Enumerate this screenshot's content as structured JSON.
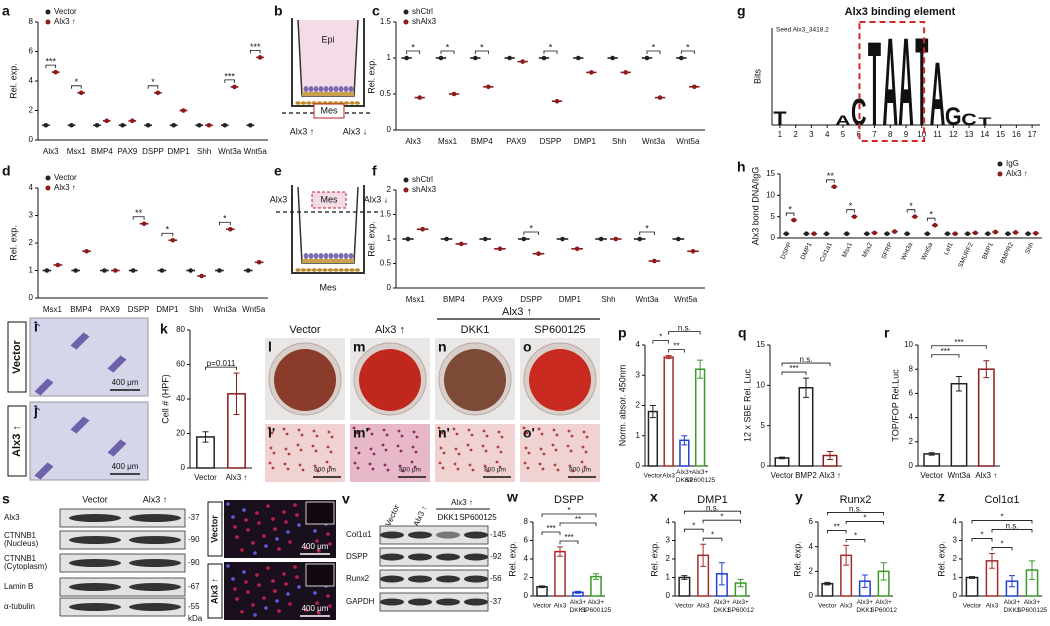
{
  "chart_data": [
    {
      "type": "dot",
      "ylabel": "Rel. exp.",
      "categories": [
        "Alx3",
        "Msx1",
        "BMP4",
        "PAX9",
        "DSPP",
        "DMP1",
        "Shh",
        "Wnt3a",
        "Wnt5a"
      ],
      "series": [
        {
          "name": "Vector",
          "color": "#222222",
          "values": [
            1,
            1,
            1,
            1,
            1,
            1,
            1,
            1,
            1
          ]
        },
        {
          "name": "Alx3 ↑",
          "color": "#8b1a1a",
          "values": [
            4.6,
            3.2,
            1.3,
            1.3,
            3.2,
            2.0,
            1.0,
            3.6,
            5.6
          ]
        }
      ],
      "significance": [
        "***",
        "*",
        null,
        null,
        "*",
        null,
        null,
        "***",
        "***"
      ],
      "ylim": [
        0,
        8
      ],
      "yticks": [
        0,
        2,
        4,
        6,
        8
      ],
      "legend": "upper left"
    },
    {
      "type": "dot",
      "ylabel": "Rel. exp.",
      "categories": [
        "Alx3",
        "Msx1",
        "BMP4",
        "PAX9",
        "DSPP",
        "DMP1",
        "Shh",
        "Wnt3a",
        "Wnt5a"
      ],
      "series": [
        {
          "name": "shCtrl",
          "color": "#222222",
          "values": [
            1,
            1,
            1,
            1,
            1,
            1,
            1,
            1,
            1
          ]
        },
        {
          "name": "shAlx3",
          "color": "#8b1a1a",
          "values": [
            0.45,
            0.5,
            0.6,
            0.95,
            0.4,
            0.8,
            0.8,
            0.45,
            0.6
          ]
        }
      ],
      "significance": [
        "*",
        "*",
        "*",
        null,
        "*",
        null,
        null,
        "*",
        "*"
      ],
      "ylim": [
        0,
        1.5
      ],
      "yticks": [
        0,
        0.5,
        1,
        1.5
      ],
      "legend": "upper left"
    },
    {
      "type": "dot",
      "ylabel": "Rel. exp.",
      "categories": [
        "Msx1",
        "BMP4",
        "PAX9",
        "DSPP",
        "DMP1",
        "Shh",
        "Wnt3a",
        "Wnt5a"
      ],
      "series": [
        {
          "name": "Vector",
          "color": "#222222",
          "values": [
            1,
            1,
            1,
            1,
            1,
            1,
            1,
            1
          ]
        },
        {
          "name": "Alx3 ↑",
          "color": "#8b1a1a",
          "values": [
            1.2,
            1.7,
            1.0,
            2.7,
            2.1,
            0.8,
            2.5,
            1.3
          ]
        }
      ],
      "significance": [
        null,
        null,
        null,
        "**",
        "*",
        null,
        "*",
        null
      ],
      "ylim": [
        0,
        4
      ],
      "yticks": [
        0,
        1,
        2,
        3,
        4
      ],
      "legend": "upper left"
    },
    {
      "type": "dot",
      "ylabel": "Rel. exp.",
      "categories": [
        "Msx1",
        "BMP4",
        "PAX9",
        "DSPP",
        "DMP1",
        "Shh",
        "Wnt3a",
        "Wnt5a"
      ],
      "series": [
        {
          "name": "shCtrl",
          "color": "#222222",
          "values": [
            1,
            1,
            1,
            1,
            1,
            1,
            1,
            1
          ]
        },
        {
          "name": "shAlx3",
          "color": "#8b1a1a",
          "values": [
            1.2,
            0.9,
            0.8,
            0.7,
            0.8,
            1.0,
            0.55,
            0.75
          ]
        }
      ],
      "significance": [
        null,
        null,
        null,
        "*",
        null,
        null,
        "*",
        null
      ],
      "ylim": [
        0,
        2
      ],
      "yticks": [
        0,
        0.5,
        1,
        1.5,
        2
      ],
      "legend": "upper left"
    },
    {
      "type": "dot",
      "ylabel": "Alx3 bond DNA/IgG",
      "categories": [
        "DSPP",
        "DMP1",
        "Col1a1",
        "Msx1",
        "Msx2",
        "SFRP",
        "Wnt3a",
        "Wnt5a",
        "Lef1",
        "SMURF2",
        "BMP1",
        "BMPR2",
        "Shh"
      ],
      "series": [
        {
          "name": "IgG",
          "color": "#222222",
          "values": [
            1,
            1,
            1,
            1,
            1,
            1,
            1,
            1,
            1,
            1,
            1,
            1,
            1
          ]
        },
        {
          "name": "Alx3 ↑",
          "color": "#8b1a1a",
          "values": [
            4.2,
            1.0,
            12,
            5,
            1.2,
            1.5,
            5,
            3,
            1.0,
            1.2,
            1.4,
            1.3,
            1.1
          ]
        }
      ],
      "significance": [
        "*",
        null,
        "**",
        "*",
        null,
        null,
        "*",
        "*",
        null,
        null,
        null,
        null,
        null
      ],
      "ylim": [
        0,
        15
      ],
      "yticks": [
        0,
        5,
        10,
        15
      ],
      "legend": "upper right"
    },
    {
      "type": "bar",
      "ylabel": "Cell # (HPF)",
      "categories": [
        "Vector",
        "Alx3 ↑"
      ],
      "values": [
        18,
        43
      ],
      "errors": [
        3,
        12
      ],
      "colors": [
        "#222222",
        "#8b1a1a"
      ],
      "comparisons": [
        {
          "pair": [
            0,
            1
          ],
          "label": "p=0.011"
        }
      ],
      "ylim": [
        0,
        80
      ],
      "yticks": [
        0,
        20,
        40,
        60,
        80
      ]
    },
    {
      "type": "bar",
      "ylabel": "Norm. absor. 450nm",
      "categories": [
        "Vector",
        "Alx3",
        "Alx3+ DKK1",
        "Alx3+ SP600125"
      ],
      "values": [
        1.8,
        3.6,
        0.85,
        3.2
      ],
      "errors": [
        0.2,
        0.05,
        0.15,
        0.3
      ],
      "colors": [
        "#222222",
        "#a52a2a",
        "#1f3fd0",
        "#3a9a2a"
      ],
      "comparisons": [
        {
          "pair": [
            1,
            2
          ],
          "label": "**"
        },
        {
          "pair": [
            0,
            1
          ],
          "label": "*"
        },
        {
          "pair": [
            1,
            3
          ],
          "label": "n.s."
        }
      ],
      "ylim": [
        0,
        4
      ],
      "yticks": [
        0,
        1,
        2,
        3,
        4
      ]
    },
    {
      "type": "bar",
      "ylabel": "12 x SBE Rel. Luc",
      "categories": [
        "Vector",
        "BMP2",
        "Alx3 ↑"
      ],
      "values": [
        1,
        9.7,
        1.3
      ],
      "errors": [
        0.1,
        1.2,
        0.5
      ],
      "colors": [
        "#222222",
        "#222222",
        "#8b1a1a"
      ],
      "comparisons": [
        {
          "pair": [
            0,
            1
          ],
          "label": "***"
        },
        {
          "pair": [
            0,
            2
          ],
          "label": "n.s."
        }
      ],
      "ylim": [
        0,
        15
      ],
      "yticks": [
        0,
        5,
        10,
        15
      ]
    },
    {
      "type": "bar",
      "ylabel": "TOP/FOP Rel.Luc",
      "categories": [
        "Vector",
        "Wnt3a",
        "Alx3 ↑"
      ],
      "values": [
        1,
        6.8,
        8
      ],
      "errors": [
        0.1,
        0.6,
        0.7
      ],
      "colors": [
        "#222222",
        "#222222",
        "#8b1a1a"
      ],
      "comparisons": [
        {
          "pair": [
            0,
            1
          ],
          "label": "***"
        },
        {
          "pair": [
            0,
            2
          ],
          "label": "***"
        }
      ],
      "ylim": [
        0,
        10
      ],
      "yticks": [
        0,
        2,
        4,
        6,
        8,
        10
      ]
    },
    {
      "type": "bar",
      "title": "DSPP",
      "ylabel": "Rel. exp.",
      "categories": [
        "Vector",
        "Alx3",
        "Alx3+ DKK1",
        "Alx3+ SP600125"
      ],
      "values": [
        1,
        4.8,
        0.4,
        2.1
      ],
      "errors": [
        0.1,
        0.5,
        0.1,
        0.3
      ],
      "colors": [
        "#222222",
        "#a52a2a",
        "#1f3fd0",
        "#3a9a2a"
      ],
      "comparisons": [
        {
          "pair": [
            1,
            2
          ],
          "label": "***"
        },
        {
          "pair": [
            0,
            1
          ],
          "label": "***"
        },
        {
          "pair": [
            1,
            3
          ],
          "label": "**"
        },
        {
          "pair": [
            0,
            3
          ],
          "label": "*"
        }
      ],
      "ylim": [
        0,
        8
      ],
      "yticks": [
        0,
        2,
        4,
        6,
        8
      ]
    },
    {
      "type": "bar",
      "title": "DMP1",
      "ylabel": "Rel. exp.",
      "categories": [
        "Vector",
        "Alx3",
        "Alx3+ DKK1",
        "Alx3+ SP60012"
      ],
      "values": [
        1,
        2.2,
        1.2,
        0.7
      ],
      "errors": [
        0.1,
        0.6,
        0.6,
        0.2
      ],
      "colors": [
        "#222222",
        "#a52a2a",
        "#1f3fd0",
        "#3a9a2a"
      ],
      "comparisons": [
        {
          "pair": [
            1,
            2
          ],
          "label": "*"
        },
        {
          "pair": [
            0,
            1
          ],
          "label": "*"
        },
        {
          "pair": [
            1,
            3
          ],
          "label": "*"
        },
        {
          "pair": [
            0,
            3
          ],
          "label": "n.s."
        }
      ],
      "ylim": [
        0,
        4
      ],
      "yticks": [
        0,
        1,
        2,
        3,
        4
      ]
    },
    {
      "type": "bar",
      "title": "Runx2",
      "ylabel": "Rel. exp.",
      "categories": [
        "Vector",
        "Alx3",
        "Alx3+ DKK1",
        "Alx3+ SP60012"
      ],
      "values": [
        1,
        3.3,
        1.2,
        2.0
      ],
      "errors": [
        0.1,
        0.8,
        0.5,
        0.7
      ],
      "colors": [
        "#222222",
        "#a52a2a",
        "#1f3fd0",
        "#3a9a2a"
      ],
      "comparisons": [
        {
          "pair": [
            1,
            2
          ],
          "label": "*"
        },
        {
          "pair": [
            0,
            1
          ],
          "label": "**"
        },
        {
          "pair": [
            1,
            3
          ],
          "label": "*"
        },
        {
          "pair": [
            0,
            3
          ],
          "label": "n.s."
        }
      ],
      "ylim": [
        0,
        6
      ],
      "yticks": [
        0,
        2,
        4,
        6
      ]
    },
    {
      "type": "bar",
      "title": "Col1α1",
      "ylabel": "Rel. exp.",
      "categories": [
        "Vector",
        "Alx3",
        "Alx3+ DKK1",
        "Alx3+ SP600125"
      ],
      "values": [
        1,
        1.9,
        0.8,
        1.4
      ],
      "errors": [
        0.05,
        0.4,
        0.3,
        0.5
      ],
      "colors": [
        "#222222",
        "#a52a2a",
        "#1f3fd0",
        "#3a9a2a"
      ],
      "comparisons": [
        {
          "pair": [
            1,
            2
          ],
          "label": "*"
        },
        {
          "pair": [
            0,
            1
          ],
          "label": "*"
        },
        {
          "pair": [
            1,
            3
          ],
          "label": "n.s."
        },
        {
          "pair": [
            0,
            3
          ],
          "label": "*"
        }
      ],
      "ylim": [
        0,
        4
      ],
      "yticks": [
        0,
        1,
        2,
        3,
        4
      ]
    }
  ],
  "panel_labels": [
    "a",
    "b",
    "c",
    "d",
    "e",
    "f",
    "g",
    "h",
    "i",
    "j",
    "k",
    "l",
    "m",
    "n",
    "o",
    "p",
    "q",
    "r",
    "s",
    "t",
    "u",
    "v",
    "w",
    "x",
    "y",
    "z",
    "l'",
    "m'",
    "n'",
    "o'"
  ],
  "diagram_b": {
    "labels": [
      "Epi",
      "Mes",
      "Alx3 ↑",
      "Alx3 ↓"
    ]
  },
  "diagram_e": {
    "labels": [
      "Mes",
      "Mes",
      "Alx3 ↑",
      "Alx3 ↓"
    ]
  },
  "logo": {
    "title": "Alx3 binding element",
    "seed": "Seed  Alx3_3418.2",
    "ylabel": "Bits",
    "positions": [
      1,
      2,
      3,
      4,
      5,
      6,
      7,
      8,
      9,
      10,
      11,
      12,
      13,
      14,
      15,
      16,
      17
    ],
    "letters": [
      "T",
      null,
      null,
      null,
      "A",
      "C",
      "T",
      "A",
      "A",
      "T",
      "A",
      "G",
      "C",
      "T",
      null,
      null,
      null
    ]
  },
  "images_ij": {
    "labels": [
      "Vector",
      "Alx3 ↑"
    ],
    "scale": [
      "400 μm",
      "400 μm"
    ]
  },
  "dishes": {
    "header": [
      "Vector",
      "Alx3 ↑"
    ],
    "group": "Alx3 ↑",
    "treatments": [
      "DKK1",
      "SP600125"
    ],
    "scale": [
      "800 μm",
      "800 μm",
      "800 μm",
      "800 μm"
    ]
  },
  "blot_s": {
    "columns": [
      "Vector",
      "Alx3 ↑"
    ],
    "rows": [
      "Alx3",
      "CTNNB1 (Nucleus)",
      "CTNNB1 (Cytoplasm)",
      "Lamin B",
      "α-tubulin"
    ],
    "kda": [
      "-37",
      "-90",
      "-90",
      "-67",
      "-55"
    ],
    "unit": "kDa"
  },
  "if_tu": {
    "labels": [
      "Vector",
      "Alx3 ↑"
    ],
    "scale": [
      "400 μm",
      "400 μm"
    ],
    "stains": [
      "DAPI",
      "β-catenin"
    ]
  },
  "blot_v": {
    "columns": [
      "Vector",
      "Alx3 ↑"
    ],
    "group": "Alx3 ↑",
    "treatments": [
      "DKK1",
      "SP600125"
    ],
    "rows": [
      "Col1α1",
      "DSPP",
      "Runx2",
      "GAPDH"
    ],
    "kda": [
      "-145",
      "-92",
      "-56",
      "-37"
    ]
  }
}
